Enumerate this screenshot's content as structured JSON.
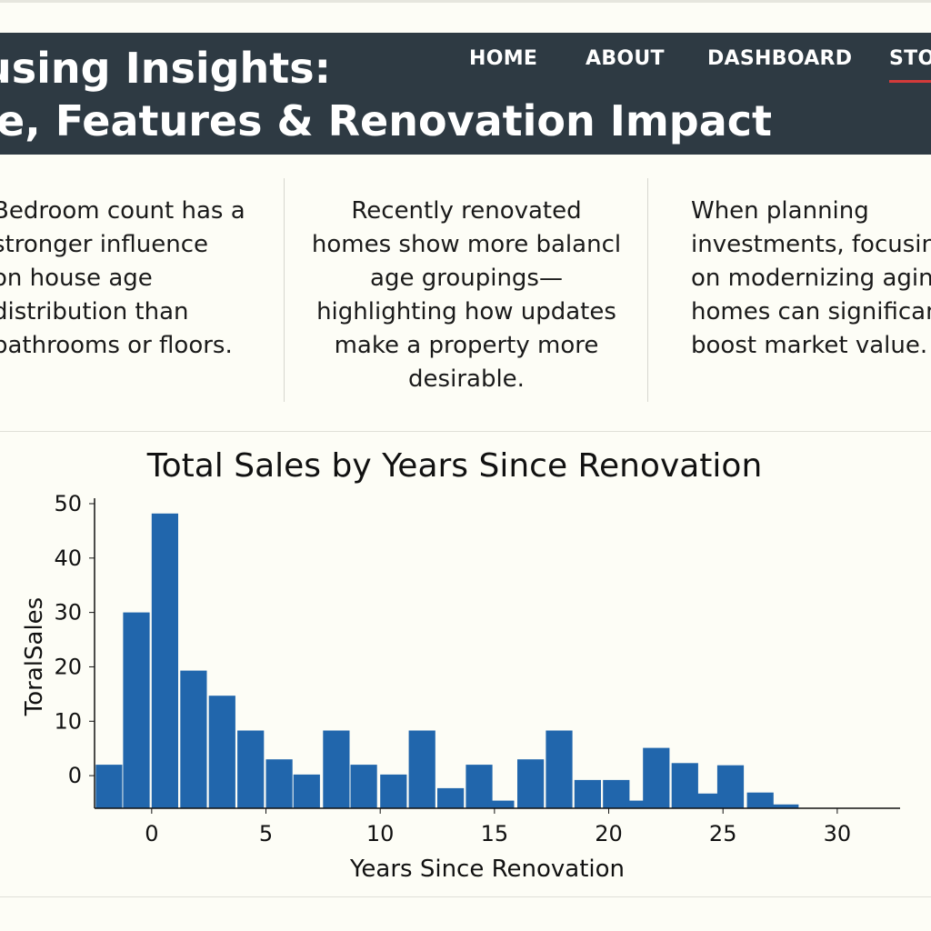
{
  "header": {
    "title_line1": "using Insights:",
    "title_line2": "e, Features & Renovation Impact",
    "nav": [
      {
        "label": "HOME"
      },
      {
        "label": "ABOUT"
      },
      {
        "label": "DASHBOARD"
      },
      {
        "label": "STO",
        "active": true
      }
    ]
  },
  "insights": [
    {
      "lines": [
        "Bedroom count has a",
        "stronger influence",
        "on house age",
        "distribution than",
        "bathrooms or floors."
      ]
    },
    {
      "lines": [
        "Recently renovated",
        "homes show more balancl",
        "age groupings—",
        "highlighting how updates",
        "make a property more",
        "desirable."
      ]
    },
    {
      "lines": [
        "When planning",
        "investments, focusing",
        "on modernizing aging",
        "homes can significant",
        "boost market value."
      ]
    }
  ],
  "colors": {
    "header_bg": "#2e3a43",
    "bar": "#2166ac",
    "accent": "#d33a3a",
    "page_bg": "#fdfdf6"
  },
  "chart_data": {
    "type": "bar",
    "title": "Total Sales by Years Since Renovation",
    "xlabel": "Years Since Renovation",
    "ylabel": "ToralSales",
    "x_ticks": [
      0,
      5,
      10,
      15,
      20,
      25,
      30
    ],
    "y_ticks": [
      0,
      10,
      20,
      30,
      40,
      50
    ],
    "grid": false,
    "xlim": [
      -2.5,
      32.75
    ],
    "ylim": [
      -6,
      51
    ],
    "bins": [
      {
        "x": -1.85,
        "value": 2
      },
      {
        "x": -0.65,
        "value": 30
      },
      {
        "x": 0.6,
        "value": 48.2
      },
      {
        "x": 1.85,
        "value": 19.3
      },
      {
        "x": 3.1,
        "value": 14.7
      },
      {
        "x": 4.35,
        "value": 8.3
      },
      {
        "x": 5.6,
        "value": 3
      },
      {
        "x": 6.8,
        "value": 0.2
      },
      {
        "x": 8.1,
        "value": 8.3
      },
      {
        "x": 9.3,
        "value": 2
      },
      {
        "x": 10.6,
        "value": 0.2
      },
      {
        "x": 11.85,
        "value": 8.3
      },
      {
        "x": 13.1,
        "value": -2.3
      },
      {
        "x": 14.35,
        "value": 2
      },
      {
        "x": 15.3,
        "value": -4.6
      },
      {
        "x": 16.6,
        "value": 3
      },
      {
        "x": 17.85,
        "value": 8.3
      },
      {
        "x": 19.1,
        "value": -0.8
      },
      {
        "x": 20.35,
        "value": -0.8
      },
      {
        "x": 21.3,
        "value": -4.6
      },
      {
        "x": 22.1,
        "value": 5.1
      },
      {
        "x": 23.35,
        "value": 2.3
      },
      {
        "x": 24.4,
        "value": -3.3
      },
      {
        "x": 25.35,
        "value": 1.9
      },
      {
        "x": 26.65,
        "value": -3.1
      },
      {
        "x": 27.75,
        "value": -5.3
      }
    ]
  }
}
